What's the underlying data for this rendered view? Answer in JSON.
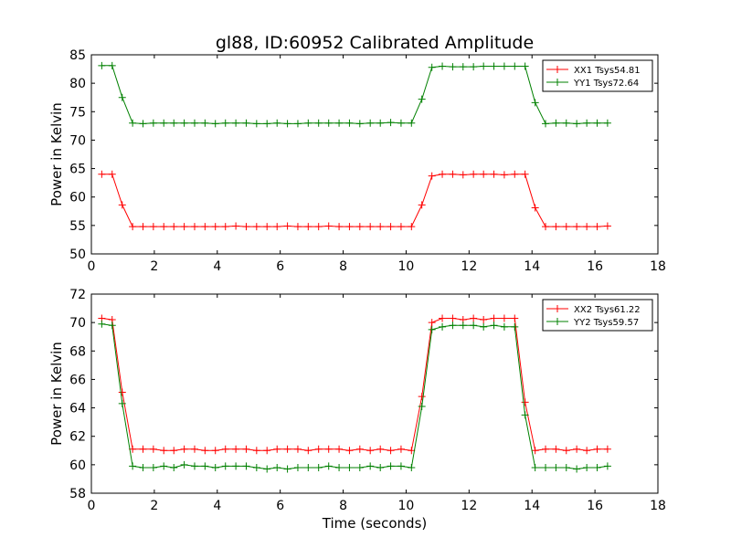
{
  "title": "gl88, ID:60952 Calibrated Amplitude",
  "chart_data": [
    {
      "type": "line",
      "title": "gl88, ID:60952 Calibrated Amplitude",
      "xlabel": "",
      "ylabel": "Power in Kelvin",
      "xlim": [
        0,
        18
      ],
      "ylim": [
        50,
        85
      ],
      "xticks": [
        0,
        2,
        4,
        6,
        8,
        10,
        12,
        14,
        16,
        18
      ],
      "yticks": [
        50,
        55,
        60,
        65,
        70,
        75,
        80,
        85
      ],
      "grid": false,
      "legend_position": "top-right",
      "x": [
        0.33,
        0.66,
        0.98,
        1.31,
        1.64,
        1.97,
        2.3,
        2.62,
        2.95,
        3.28,
        3.61,
        3.94,
        4.26,
        4.59,
        4.92,
        5.25,
        5.58,
        5.9,
        6.23,
        6.56,
        6.89,
        7.22,
        7.54,
        7.87,
        8.2,
        8.53,
        8.86,
        9.18,
        9.51,
        9.84,
        10.17,
        10.5,
        10.82,
        11.15,
        11.48,
        11.81,
        12.14,
        12.46,
        12.79,
        13.12,
        13.45,
        13.78,
        14.1,
        14.43,
        14.76,
        15.09,
        15.42,
        15.74,
        16.07,
        16.4
      ],
      "series": [
        {
          "name": "XX1 Tsys54.81",
          "color": "#ff0000",
          "values": [
            64.0,
            64.0,
            58.6,
            54.8,
            54.8,
            54.8,
            54.8,
            54.8,
            54.8,
            54.8,
            54.8,
            54.8,
            54.8,
            54.9,
            54.8,
            54.8,
            54.8,
            54.8,
            54.9,
            54.8,
            54.8,
            54.8,
            54.9,
            54.8,
            54.8,
            54.8,
            54.8,
            54.8,
            54.8,
            54.8,
            54.8,
            58.6,
            63.7,
            64.0,
            64.0,
            63.9,
            64.0,
            64.0,
            64.0,
            63.9,
            64.0,
            64.0,
            58.1,
            54.8,
            54.8,
            54.8,
            54.8,
            54.8,
            54.8,
            54.9
          ]
        },
        {
          "name": "YY1 Tsys72.64",
          "color": "#008000",
          "values": [
            83.1,
            83.1,
            77.5,
            73.0,
            72.9,
            73.0,
            73.0,
            73.0,
            73.0,
            73.0,
            73.0,
            72.9,
            73.0,
            73.0,
            73.0,
            72.9,
            72.9,
            73.0,
            72.9,
            72.9,
            73.0,
            73.0,
            73.0,
            73.0,
            73.0,
            72.9,
            73.0,
            73.0,
            73.1,
            73.0,
            73.0,
            77.2,
            82.8,
            83.0,
            82.9,
            82.9,
            82.9,
            83.0,
            83.0,
            83.0,
            83.0,
            83.0,
            76.6,
            72.9,
            73.0,
            73.0,
            72.9,
            73.0,
            73.0,
            73.0
          ]
        }
      ]
    },
    {
      "type": "line",
      "title": "",
      "xlabel": "Time (seconds)",
      "ylabel": "Power in Kelvin",
      "xlim": [
        0,
        18
      ],
      "ylim": [
        58,
        72
      ],
      "xticks": [
        0,
        2,
        4,
        6,
        8,
        10,
        12,
        14,
        16,
        18
      ],
      "yticks": [
        58,
        60,
        62,
        64,
        66,
        68,
        70,
        72
      ],
      "grid": false,
      "legend_position": "top-right",
      "x": [
        0.33,
        0.66,
        0.98,
        1.31,
        1.64,
        1.97,
        2.3,
        2.62,
        2.95,
        3.28,
        3.61,
        3.94,
        4.26,
        4.59,
        4.92,
        5.25,
        5.58,
        5.9,
        6.23,
        6.56,
        6.89,
        7.22,
        7.54,
        7.87,
        8.2,
        8.53,
        8.86,
        9.18,
        9.51,
        9.84,
        10.17,
        10.5,
        10.82,
        11.15,
        11.48,
        11.81,
        12.14,
        12.46,
        12.79,
        13.12,
        13.45,
        13.78,
        14.1,
        14.43,
        14.76,
        15.09,
        15.42,
        15.74,
        16.07,
        16.4
      ],
      "series": [
        {
          "name": "XX2 Tsys61.22",
          "color": "#ff0000",
          "values": [
            70.3,
            70.2,
            65.1,
            61.1,
            61.1,
            61.1,
            61.0,
            61.0,
            61.1,
            61.1,
            61.0,
            61.0,
            61.1,
            61.1,
            61.1,
            61.0,
            61.0,
            61.1,
            61.1,
            61.1,
            61.0,
            61.1,
            61.1,
            61.1,
            61.0,
            61.1,
            61.0,
            61.1,
            61.0,
            61.1,
            61.0,
            64.8,
            70.0,
            70.3,
            70.3,
            70.2,
            70.3,
            70.2,
            70.3,
            70.3,
            70.3,
            64.4,
            61.0,
            61.1,
            61.1,
            61.0,
            61.1,
            61.0,
            61.1,
            61.1
          ]
        },
        {
          "name": "YY2 Tsys59.57",
          "color": "#008000",
          "values": [
            69.9,
            69.8,
            64.3,
            59.9,
            59.8,
            59.8,
            59.9,
            59.8,
            60.0,
            59.9,
            59.9,
            59.8,
            59.9,
            59.9,
            59.9,
            59.8,
            59.7,
            59.8,
            59.7,
            59.8,
            59.8,
            59.8,
            59.9,
            59.8,
            59.8,
            59.8,
            59.9,
            59.8,
            59.9,
            59.9,
            59.8,
            64.1,
            69.5,
            69.7,
            69.8,
            69.8,
            69.8,
            69.7,
            69.8,
            69.7,
            69.7,
            63.5,
            59.8,
            59.8,
            59.8,
            59.8,
            59.7,
            59.8,
            59.8,
            59.9
          ]
        }
      ]
    }
  ]
}
